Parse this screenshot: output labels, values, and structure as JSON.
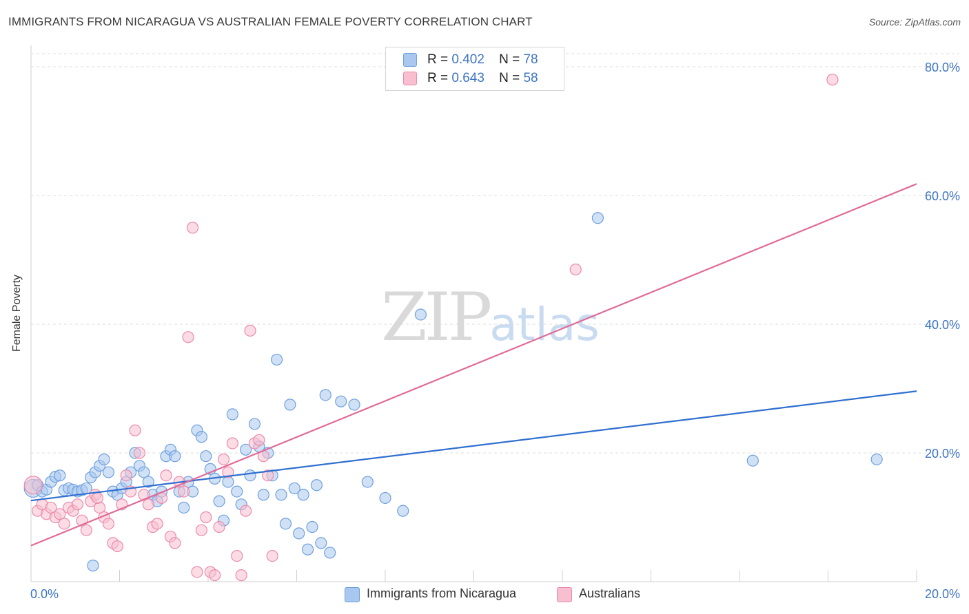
{
  "header": {
    "title": "IMMIGRANTS FROM NICARAGUA VS AUSTRALIAN FEMALE POVERTY CORRELATION CHART",
    "source": "Source: ZipAtlas.com"
  },
  "watermark": {
    "zip": "ZIP",
    "atlas": "atlas"
  },
  "legend_top": {
    "rows": [
      {
        "r_label": "R =",
        "r_value": "0.402",
        "n_label": "N =",
        "n_value": "78",
        "color": "#a9c8ef"
      },
      {
        "r_label": "R =",
        "r_value": "0.643",
        "n_label": "N =",
        "n_value": "58",
        "color": "#f7bfd0"
      }
    ]
  },
  "legend_bottom": {
    "items": [
      {
        "label": "Immigrants from Nicaragua",
        "color": "#a9c8ef"
      },
      {
        "label": "Australians",
        "color": "#f7bfd0"
      }
    ]
  },
  "chart_data": {
    "type": "scatter",
    "title": "IMMIGRANTS FROM NICARAGUA VS AUSTRALIAN FEMALE POVERTY CORRELATION CHART",
    "xlabel": "",
    "ylabel": "Female Poverty",
    "xlim": [
      0,
      20
    ],
    "ylim": [
      0,
      80
    ],
    "x_tick_labels": [
      "0.0%",
      "20.0%"
    ],
    "y_ticks": [
      20,
      40,
      60,
      80
    ],
    "y_tick_labels": [
      "20.0%",
      "40.0%",
      "60.0%",
      "80.0%"
    ],
    "grid": true,
    "legend_placement": "top-center",
    "series": [
      {
        "name": "Immigrants from Nicaragua",
        "color": "#6fa0de",
        "fill": "#a9c8ef",
        "trend": {
          "x": [
            0,
            20
          ],
          "y": [
            12.6,
            29.6
          ],
          "color": "#2f6fd0"
        },
        "points": [
          [
            0.05,
            14.5
          ],
          [
            0.15,
            15.0
          ],
          [
            0.25,
            14.0
          ],
          [
            0.35,
            14.3
          ],
          [
            0.45,
            15.5
          ],
          [
            0.55,
            16.3
          ],
          [
            0.65,
            16.5
          ],
          [
            0.75,
            14.2
          ],
          [
            0.85,
            14.5
          ],
          [
            0.95,
            14.3
          ],
          [
            1.05,
            14.0
          ],
          [
            1.15,
            14.2
          ],
          [
            1.25,
            14.5
          ],
          [
            1.35,
            16.2
          ],
          [
            1.45,
            17.0
          ],
          [
            1.55,
            18.0
          ],
          [
            1.65,
            19.0
          ],
          [
            1.75,
            17.0
          ],
          [
            1.85,
            14.0
          ],
          [
            1.95,
            13.5
          ],
          [
            2.05,
            14.5
          ],
          [
            2.15,
            15.5
          ],
          [
            2.25,
            17.0
          ],
          [
            2.35,
            20.0
          ],
          [
            2.45,
            18.0
          ],
          [
            2.55,
            17.0
          ],
          [
            2.65,
            15.5
          ],
          [
            2.75,
            13.5
          ],
          [
            2.85,
            12.5
          ],
          [
            2.95,
            14.0
          ],
          [
            3.05,
            19.5
          ],
          [
            3.15,
            20.5
          ],
          [
            3.25,
            19.5
          ],
          [
            3.35,
            14.0
          ],
          [
            3.45,
            11.5
          ],
          [
            3.55,
            15.5
          ],
          [
            3.65,
            14.0
          ],
          [
            3.75,
            23.5
          ],
          [
            3.85,
            22.5
          ],
          [
            3.95,
            19.5
          ],
          [
            4.05,
            17.5
          ],
          [
            4.15,
            16.0
          ],
          [
            4.25,
            12.5
          ],
          [
            4.35,
            9.5
          ],
          [
            4.45,
            15.5
          ],
          [
            4.55,
            26.0
          ],
          [
            4.65,
            14.0
          ],
          [
            4.75,
            12.0
          ],
          [
            4.85,
            20.5
          ],
          [
            4.95,
            16.5
          ],
          [
            5.05,
            24.5
          ],
          [
            5.15,
            21.0
          ],
          [
            5.25,
            13.5
          ],
          [
            5.35,
            20.0
          ],
          [
            5.45,
            16.5
          ],
          [
            5.55,
            34.5
          ],
          [
            5.65,
            13.5
          ],
          [
            5.75,
            9.0
          ],
          [
            5.85,
            27.5
          ],
          [
            5.95,
            14.5
          ],
          [
            6.05,
            7.5
          ],
          [
            6.15,
            13.5
          ],
          [
            6.25,
            5.0
          ],
          [
            6.35,
            8.5
          ],
          [
            6.45,
            15.0
          ],
          [
            6.55,
            6.0
          ],
          [
            6.65,
            29.0
          ],
          [
            6.75,
            4.5
          ],
          [
            7.0,
            28.0
          ],
          [
            7.3,
            27.5
          ],
          [
            7.6,
            15.5
          ],
          [
            8.0,
            13.0
          ],
          [
            8.4,
            11.0
          ],
          [
            8.8,
            41.5
          ],
          [
            12.8,
            56.5
          ],
          [
            16.3,
            18.8
          ],
          [
            19.1,
            19.0
          ],
          [
            1.4,
            2.5
          ]
        ]
      },
      {
        "name": "Australians",
        "color": "#ec8aab",
        "fill": "#f7bfd0",
        "trend": {
          "x": [
            0,
            20
          ],
          "y": [
            5.6,
            61.8
          ],
          "color": "#e06a97"
        },
        "points": [
          [
            0.05,
            15.0
          ],
          [
            0.15,
            11.0
          ],
          [
            0.25,
            12.0
          ],
          [
            0.35,
            10.5
          ],
          [
            0.45,
            11.5
          ],
          [
            0.55,
            10.0
          ],
          [
            0.65,
            10.5
          ],
          [
            0.75,
            9.0
          ],
          [
            0.85,
            11.5
          ],
          [
            0.95,
            11.0
          ],
          [
            1.05,
            12.0
          ],
          [
            1.15,
            9.5
          ],
          [
            1.25,
            8.0
          ],
          [
            1.35,
            12.5
          ],
          [
            1.45,
            13.5
          ],
          [
            1.55,
            11.5
          ],
          [
            1.65,
            10.0
          ],
          [
            1.75,
            9.0
          ],
          [
            1.85,
            6.0
          ],
          [
            1.95,
            5.5
          ],
          [
            2.05,
            12.0
          ],
          [
            2.15,
            16.5
          ],
          [
            2.25,
            14.0
          ],
          [
            2.35,
            23.5
          ],
          [
            2.45,
            20.0
          ],
          [
            2.55,
            13.5
          ],
          [
            2.65,
            12.0
          ],
          [
            2.75,
            8.5
          ],
          [
            2.85,
            9.0
          ],
          [
            2.95,
            13.0
          ],
          [
            3.05,
            16.5
          ],
          [
            3.15,
            7.0
          ],
          [
            3.25,
            6.0
          ],
          [
            3.35,
            15.5
          ],
          [
            3.45,
            14.0
          ],
          [
            3.55,
            38.0
          ],
          [
            3.65,
            55.0
          ],
          [
            3.75,
            1.5
          ],
          [
            3.85,
            8.0
          ],
          [
            3.95,
            10.0
          ],
          [
            4.05,
            1.5
          ],
          [
            4.15,
            1.0
          ],
          [
            4.25,
            8.5
          ],
          [
            4.35,
            19.0
          ],
          [
            4.45,
            17.0
          ],
          [
            4.55,
            21.5
          ],
          [
            4.65,
            4.0
          ],
          [
            4.75,
            1.0
          ],
          [
            4.85,
            11.0
          ],
          [
            4.95,
            39.0
          ],
          [
            5.05,
            21.5
          ],
          [
            5.15,
            22.0
          ],
          [
            5.25,
            19.5
          ],
          [
            5.35,
            16.5
          ],
          [
            5.45,
            4.0
          ],
          [
            12.3,
            48.5
          ],
          [
            18.1,
            78.0
          ],
          [
            1.5,
            13.0
          ]
        ]
      }
    ]
  }
}
